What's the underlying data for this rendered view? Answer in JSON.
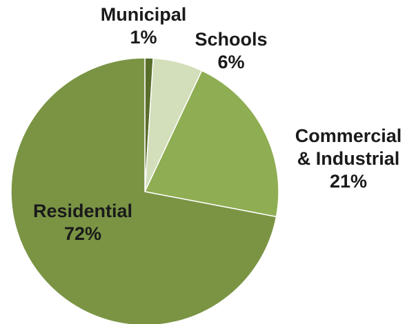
{
  "chart_data": {
    "type": "pie",
    "title": "",
    "start_angle_deg": 0,
    "direction": "clockwise",
    "slices": [
      {
        "label": [
          "Municipal"
        ],
        "percent_label": "1%",
        "value": 1,
        "color": "#5a6e2c"
      },
      {
        "label": [
          "Schools"
        ],
        "percent_label": "6%",
        "value": 6,
        "color": "#d2dfba"
      },
      {
        "label": [
          "Commercial",
          "& Industrial"
        ],
        "percent_label": "21%",
        "value": 21,
        "color": "#8fad52"
      },
      {
        "label": [
          "Residential"
        ],
        "percent_label": "72%",
        "value": 72,
        "color": "#7a9444"
      }
    ]
  }
}
